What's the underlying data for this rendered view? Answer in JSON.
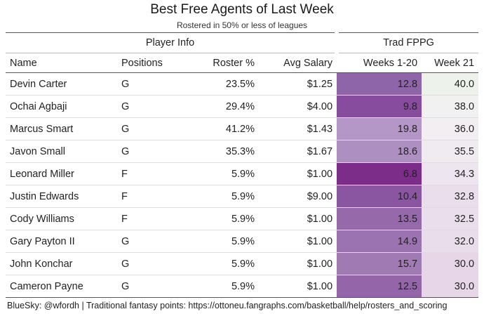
{
  "title": "Best Free Agents of Last Week",
  "subtitle": "Rostered in 50% or less of leagues",
  "footer": "BlueSky: @wfordh | Traditional fantasy points: https://ottoneu.fangraphs.com/basketball/help/rosters_and_scoring",
  "chart_data": {
    "type": "table",
    "column_groups": [
      {
        "label": "Player Info"
      },
      {
        "label": "Trad FPPG"
      }
    ],
    "columns": [
      "Name",
      "Positions",
      "Roster %",
      "Avg Salary",
      "Weeks 1-20",
      "Week 21"
    ],
    "rows": [
      {
        "name": "Devin Carter",
        "positions": "G",
        "roster": "23.5%",
        "salary": "$1.25",
        "weeks": "12.8",
        "week21": "40.0",
        "weeks_color": "#8e65a8",
        "week21_color": "#edf3ea"
      },
      {
        "name": "Ochai Agbaji",
        "positions": "G",
        "roster": "29.4%",
        "salary": "$4.00",
        "weeks": "9.8",
        "week21": "38.0",
        "weeks_color": "#874c9e",
        "week21_color": "#f1f1f1"
      },
      {
        "name": "Marcus Smart",
        "positions": "G",
        "roster": "41.2%",
        "salary": "$1.43",
        "weeks": "19.8",
        "week21": "36.0",
        "weeks_color": "#b497c6",
        "week21_color": "#f2eef2"
      },
      {
        "name": "Javon Small",
        "positions": "G",
        "roster": "35.3%",
        "salary": "$1.67",
        "weeks": "18.6",
        "week21": "35.5",
        "weeks_color": "#ae8fc2",
        "week21_color": "#f0ebf1"
      },
      {
        "name": "Leonard Miller",
        "positions": "F",
        "roster": "5.9%",
        "salary": "$1.00",
        "weeks": "6.8",
        "week21": "34.3",
        "weeks_color": "#7b2d89",
        "week21_color": "#ede5ef"
      },
      {
        "name": "Justin Edwards",
        "positions": "F",
        "roster": "5.9%",
        "salary": "$9.00",
        "weeks": "10.4",
        "week21": "32.8",
        "weeks_color": "#8a56a2",
        "week21_color": "#eadeec"
      },
      {
        "name": "Cody Williams",
        "positions": "F",
        "roster": "5.9%",
        "salary": "$1.00",
        "weeks": "13.5",
        "week21": "32.5",
        "weeks_color": "#9569aa",
        "week21_color": "#eadeec"
      },
      {
        "name": "Gary Payton II",
        "positions": "G",
        "roster": "5.9%",
        "salary": "$1.00",
        "weeks": "14.9",
        "week21": "32.0",
        "weeks_color": "#9b73b0",
        "week21_color": "#e9dceb"
      },
      {
        "name": "John Konchar",
        "positions": "G",
        "roster": "5.9%",
        "salary": "$1.00",
        "weeks": "15.7",
        "week21": "30.0",
        "weeks_color": "#9f7ab3",
        "week21_color": "#e6d6e8"
      },
      {
        "name": "Cameron Payne",
        "positions": "G",
        "roster": "5.9%",
        "salary": "$1.00",
        "weeks": "12.5",
        "week21": "30.0",
        "weeks_color": "#9465a9",
        "week21_color": "#e6d6e8"
      }
    ]
  }
}
